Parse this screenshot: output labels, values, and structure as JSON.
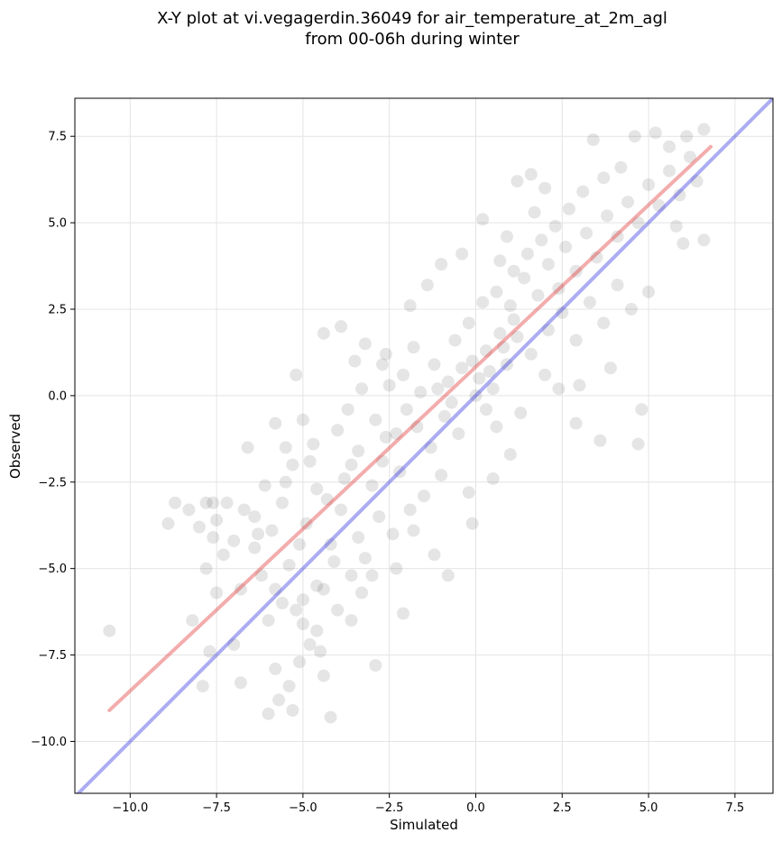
{
  "chart_data": {
    "type": "scatter",
    "title_lines": [
      "X-Y plot at vi.vegagerdin.36049 for air_temperature_at_2m_agl",
      "from 00-06h during winter"
    ],
    "xlabel": "Simulated",
    "ylabel": "Observed",
    "xlim": [
      -11.6,
      8.6
    ],
    "ylim": [
      -11.5,
      8.6
    ],
    "xticks": [
      -10.0,
      -7.5,
      -5.0,
      -2.5,
      0.0,
      2.5,
      5.0,
      7.5
    ],
    "yticks": [
      -10.0,
      -7.5,
      -5.0,
      -2.5,
      0.0,
      2.5,
      5.0,
      7.5
    ],
    "xtick_labels": [
      "−10.0",
      "−7.5",
      "−5.0",
      "−2.5",
      "0.0",
      "2.5",
      "5.0",
      "7.5"
    ],
    "ytick_labels": [
      "−10.0",
      "−7.5",
      "−5.0",
      "−2.5",
      "0.0",
      "2.5",
      "5.0",
      "7.5"
    ],
    "grid": true,
    "lines": [
      {
        "color": "#e03030",
        "x": [
          -10.6,
          6.8
        ],
        "y": [
          -9.1,
          7.2
        ]
      },
      {
        "color": "#3030e0",
        "x": [
          -11.6,
          8.6
        ],
        "y": [
          -11.6,
          8.6
        ]
      }
    ],
    "points": [
      {
        "x": -10.6,
        "y": -6.8
      },
      {
        "x": -8.2,
        "y": -6.5
      },
      {
        "x": -7.7,
        "y": -7.4
      },
      {
        "x": -6.8,
        "y": -8.3
      },
      {
        "x": -7.9,
        "y": -8.4
      },
      {
        "x": -7.0,
        "y": -7.2
      },
      {
        "x": -8.9,
        "y": -3.7
      },
      {
        "x": -8.7,
        "y": -3.1
      },
      {
        "x": -8.3,
        "y": -3.3
      },
      {
        "x": -8.0,
        "y": -3.8
      },
      {
        "x": -7.8,
        "y": -3.1
      },
      {
        "x": -7.6,
        "y": -3.1
      },
      {
        "x": -7.2,
        "y": -3.1
      },
      {
        "x": -7.5,
        "y": -3.6
      },
      {
        "x": -7.6,
        "y": -4.1
      },
      {
        "x": -7.8,
        "y": -5.0
      },
      {
        "x": -7.5,
        "y": -5.7
      },
      {
        "x": -7.3,
        "y": -4.6
      },
      {
        "x": -7.0,
        "y": -4.2
      },
      {
        "x": -6.8,
        "y": -5.6
      },
      {
        "x": -6.4,
        "y": -4.4
      },
      {
        "x": -6.6,
        "y": -1.5
      },
      {
        "x": -6.4,
        "y": -3.5
      },
      {
        "x": -6.2,
        "y": -5.2
      },
      {
        "x": -6.0,
        "y": -6.5
      },
      {
        "x": -6.0,
        "y": -9.2
      },
      {
        "x": -5.7,
        "y": -8.8
      },
      {
        "x": -5.8,
        "y": -7.9
      },
      {
        "x": -5.6,
        "y": -6.0
      },
      {
        "x": -5.4,
        "y": -8.4
      },
      {
        "x": -5.3,
        "y": -9.1
      },
      {
        "x": -5.1,
        "y": -7.7
      },
      {
        "x": -5.2,
        "y": -6.2
      },
      {
        "x": -5.0,
        "y": -6.6
      },
      {
        "x": -4.8,
        "y": -7.2
      },
      {
        "x": -4.6,
        "y": -6.8
      },
      {
        "x": -4.4,
        "y": -8.1
      },
      {
        "x": -4.2,
        "y": -9.3
      },
      {
        "x": -4.5,
        "y": -7.4
      },
      {
        "x": -4.4,
        "y": -5.6
      },
      {
        "x": -4.0,
        "y": -6.2
      },
      {
        "x": -3.6,
        "y": -6.5
      },
      {
        "x": -3.3,
        "y": -5.7
      },
      {
        "x": -2.9,
        "y": -7.8
      },
      {
        "x": -5.8,
        "y": -0.8
      },
      {
        "x": -5.5,
        "y": -1.5
      },
      {
        "x": -5.2,
        "y": 0.6
      },
      {
        "x": -5.0,
        "y": -0.7
      },
      {
        "x": -4.7,
        "y": -1.4
      },
      {
        "x": -4.4,
        "y": 1.8
      },
      {
        "x": -3.9,
        "y": 2.0
      },
      {
        "x": -3.5,
        "y": 1.0
      },
      {
        "x": -3.2,
        "y": 1.5
      },
      {
        "x": -2.6,
        "y": 1.2
      },
      {
        "x": -1.8,
        "y": 1.4
      },
      {
        "x": -1.4,
        "y": 3.2
      },
      {
        "x": -1.0,
        "y": 3.8
      },
      {
        "x": -0.4,
        "y": 4.1
      },
      {
        "x": 0.2,
        "y": 5.1
      },
      {
        "x": 1.2,
        "y": 6.2
      },
      {
        "x": 1.6,
        "y": 6.4
      },
      {
        "x": 2.0,
        "y": 6.0
      },
      {
        "x": 3.4,
        "y": 7.4
      },
      {
        "x": 4.6,
        "y": 7.5
      },
      {
        "x": 5.2,
        "y": 7.6
      },
      {
        "x": 6.1,
        "y": 7.5
      },
      {
        "x": 6.6,
        "y": 7.7
      },
      {
        "x": 6.6,
        "y": 4.5
      },
      {
        "x": 5.0,
        "y": 3.0
      },
      {
        "x": 4.8,
        "y": -0.4
      },
      {
        "x": 4.7,
        "y": -1.4
      },
      {
        "x": 3.6,
        "y": -1.3
      },
      {
        "x": 2.9,
        "y": -0.8
      },
      {
        "x": 1.0,
        "y": -1.7
      },
      {
        "x": 0.3,
        "y": -0.4
      },
      {
        "x": -0.2,
        "y": -2.8
      },
      {
        "x": -0.1,
        "y": -3.7
      },
      {
        "x": -0.8,
        "y": -5.2
      },
      {
        "x": -1.2,
        "y": -4.6
      },
      {
        "x": -1.8,
        "y": -3.9
      },
      {
        "x": -2.3,
        "y": -5.0
      },
      {
        "x": -2.1,
        "y": -6.3
      },
      {
        "x": -3.0,
        "y": -5.2
      },
      {
        "x": -3.4,
        "y": -4.1
      },
      {
        "x": -4.2,
        "y": -4.3
      },
      {
        "x": -4.9,
        "y": -3.7
      },
      {
        "x": -5.6,
        "y": -3.1
      },
      {
        "x": -6.1,
        "y": -2.6
      },
      {
        "x": -5.3,
        "y": -2.0
      },
      {
        "x": -4.6,
        "y": -2.7
      },
      {
        "x": -3.9,
        "y": -3.3
      },
      {
        "x": -3.6,
        "y": -2.0
      },
      {
        "x": -3.0,
        "y": -2.6
      },
      {
        "x": -2.7,
        "y": -1.9
      },
      {
        "x": -2.3,
        "y": -1.1
      },
      {
        "x": -2.0,
        "y": -0.4
      },
      {
        "x": -1.7,
        "y": -0.9
      },
      {
        "x": -1.3,
        "y": -1.5
      },
      {
        "x": -0.9,
        "y": -0.6
      },
      {
        "x": -0.5,
        "y": -1.1
      },
      {
        "x": -3.7,
        "y": -0.4
      },
      {
        "x": -3.3,
        "y": 0.2
      },
      {
        "x": -2.9,
        "y": -0.7
      },
      {
        "x": -2.5,
        "y": 0.3
      },
      {
        "x": -2.1,
        "y": 0.6
      },
      {
        "x": -1.6,
        "y": 0.1
      },
      {
        "x": -1.2,
        "y": 0.9
      },
      {
        "x": -0.8,
        "y": 0.4
      },
      {
        "x": -0.4,
        "y": 0.8
      },
      {
        "x": -0.1,
        "y": 1.0
      },
      {
        "x": 0.1,
        "y": 0.5
      },
      {
        "x": 0.3,
        "y": 1.3
      },
      {
        "x": 0.5,
        "y": 0.2
      },
      {
        "x": 0.7,
        "y": 1.8
      },
      {
        "x": 0.9,
        "y": 0.9
      },
      {
        "x": 1.1,
        "y": 2.2
      },
      {
        "x": -0.6,
        "y": 1.6
      },
      {
        "x": -0.2,
        "y": 2.1
      },
      {
        "x": 0.2,
        "y": 2.7
      },
      {
        "x": 0.6,
        "y": 3.0
      },
      {
        "x": 1.0,
        "y": 2.6
      },
      {
        "x": 1.4,
        "y": 3.4
      },
      {
        "x": 1.8,
        "y": 2.9
      },
      {
        "x": 2.1,
        "y": 3.8
      },
      {
        "x": 2.4,
        "y": 3.1
      },
      {
        "x": 2.6,
        "y": 4.3
      },
      {
        "x": 2.9,
        "y": 3.6
      },
      {
        "x": 3.2,
        "y": 4.7
      },
      {
        "x": 3.5,
        "y": 4.0
      },
      {
        "x": 3.8,
        "y": 5.2
      },
      {
        "x": 4.1,
        "y": 4.6
      },
      {
        "x": 4.4,
        "y": 5.6
      },
      {
        "x": 4.7,
        "y": 5.0
      },
      {
        "x": 5.0,
        "y": 6.1
      },
      {
        "x": 5.3,
        "y": 5.5
      },
      {
        "x": 5.6,
        "y": 6.5
      },
      {
        "x": 5.9,
        "y": 5.8
      },
      {
        "x": 6.2,
        "y": 6.9
      },
      {
        "x": 6.4,
        "y": 6.2
      },
      {
        "x": 4.2,
        "y": 6.6
      },
      {
        "x": 3.7,
        "y": 6.3
      },
      {
        "x": 3.1,
        "y": 5.9
      },
      {
        "x": 2.7,
        "y": 5.4
      },
      {
        "x": 2.3,
        "y": 4.9
      },
      {
        "x": 1.9,
        "y": 4.5
      },
      {
        "x": 1.5,
        "y": 4.1
      },
      {
        "x": 1.1,
        "y": 3.6
      },
      {
        "x": 0.7,
        "y": 3.9
      },
      {
        "x": 2.1,
        "y": 1.9
      },
      {
        "x": 2.5,
        "y": 2.4
      },
      {
        "x": 2.9,
        "y": 1.6
      },
      {
        "x": 3.3,
        "y": 2.7
      },
      {
        "x": 3.7,
        "y": 2.1
      },
      {
        "x": 4.1,
        "y": 3.2
      },
      {
        "x": 4.5,
        "y": 2.5
      },
      {
        "x": 1.6,
        "y": 1.2
      },
      {
        "x": 2.0,
        "y": 0.6
      },
      {
        "x": 2.4,
        "y": 0.2
      },
      {
        "x": 1.3,
        "y": -0.5
      },
      {
        "x": 0.6,
        "y": -0.9
      },
      {
        "x": -1.0,
        "y": -2.3
      },
      {
        "x": -1.5,
        "y": -2.9
      },
      {
        "x": -1.9,
        "y": -3.3
      },
      {
        "x": -2.4,
        "y": -4.0
      },
      {
        "x": -2.8,
        "y": -3.5
      },
      {
        "x": -3.2,
        "y": -4.7
      },
      {
        "x": -3.6,
        "y": -5.2
      },
      {
        "x": -4.1,
        "y": -4.8
      },
      {
        "x": -4.6,
        "y": -5.5
      },
      {
        "x": -5.0,
        "y": -5.9
      },
      {
        "x": -5.4,
        "y": -4.9
      },
      {
        "x": -5.8,
        "y": -5.6
      },
      {
        "x": -6.3,
        "y": -4.0
      },
      {
        "x": -6.7,
        "y": -3.3
      },
      {
        "x": -5.9,
        "y": -3.9
      },
      {
        "x": -5.1,
        "y": -4.3
      },
      {
        "x": -4.3,
        "y": -3.0
      },
      {
        "x": -3.8,
        "y": -2.4
      },
      {
        "x": -3.4,
        "y": -1.6
      },
      {
        "x": -2.6,
        "y": -1.2
      },
      {
        "x": -2.2,
        "y": -2.2
      },
      {
        "x": -1.1,
        "y": 0.2
      },
      {
        "x": -0.7,
        "y": -0.2
      },
      {
        "x": 0.0,
        "y": 0.0
      },
      {
        "x": 0.4,
        "y": 0.7
      },
      {
        "x": 0.8,
        "y": 1.4
      },
      {
        "x": 1.2,
        "y": 1.7
      },
      {
        "x": -1.9,
        "y": 2.6
      },
      {
        "x": -2.7,
        "y": 0.9
      },
      {
        "x": -4.0,
        "y": -1.0
      },
      {
        "x": -4.8,
        "y": -1.9
      },
      {
        "x": -5.5,
        "y": -2.5
      },
      {
        "x": 5.6,
        "y": 7.2
      },
      {
        "x": 5.8,
        "y": 4.9
      },
      {
        "x": 6.0,
        "y": 4.4
      },
      {
        "x": 3.0,
        "y": 0.3
      },
      {
        "x": 3.9,
        "y": 0.8
      },
      {
        "x": 1.7,
        "y": 5.3
      },
      {
        "x": 0.9,
        "y": 4.6
      },
      {
        "x": 0.5,
        "y": -2.4
      }
    ]
  }
}
